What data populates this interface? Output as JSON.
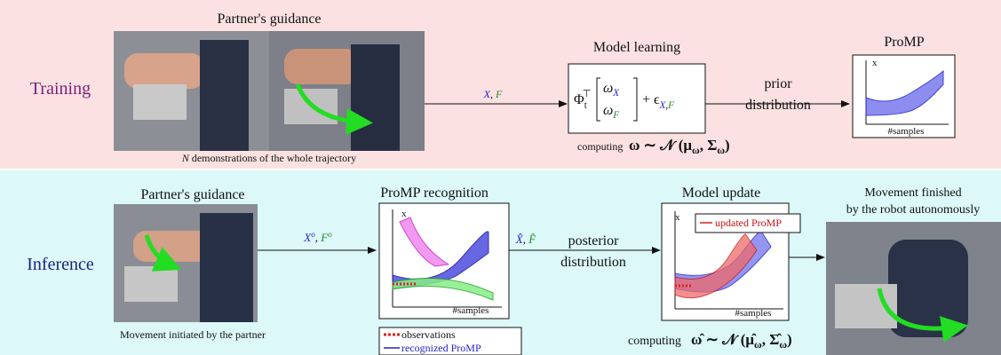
{
  "training": {
    "label": "Training",
    "photo_title": "Partner's guidance",
    "caption_var": "N",
    "caption_text": " demonstrations of the whole trajectory",
    "edge_label": [
      "X",
      ", ",
      "F"
    ],
    "model_title": "Model learning",
    "formula": [
      "Φ",
      "t",
      "⊤",
      "ω",
      "X",
      "ω",
      "F",
      "+ ϵ",
      "X",
      ",",
      "F"
    ],
    "computing_word": "computing",
    "computing_expr": [
      "ω ∼ 𝒩 (μ",
      "ω",
      ", Σ",
      "ω",
      ")"
    ],
    "arrow_label": [
      "prior",
      "distribution"
    ],
    "promp_title": "ProMP",
    "axis_y": "x",
    "axis_x": "#samples"
  },
  "inference": {
    "label": "Inference",
    "photo_title": "Partner's guidance",
    "photo_caption": "Movement initiated by the partner",
    "edge_label": [
      "X",
      "o",
      ", ",
      "F",
      "o"
    ],
    "recognition_title": "ProMP recognition",
    "recognition_axis_y": "x",
    "recognition_axis_x": "#samples",
    "legend": [
      "observations",
      "recognized ProMP"
    ],
    "hat_label": [
      "X̂",
      ", ",
      "F̂"
    ],
    "arrow_label": [
      "posterior",
      "distribution"
    ],
    "update_title": "Model update",
    "update_legend": "updated ProMP",
    "update_axis_y": "x",
    "update_axis_x": "#samples",
    "computing_word": "computing",
    "computing_expr": [
      "ω̂ ∼ 𝒩 (μ̂",
      "ω",
      ", Σ̂",
      "ω",
      ")"
    ],
    "final_title": [
      "Movement finished",
      "by the robot autonomously"
    ]
  }
}
